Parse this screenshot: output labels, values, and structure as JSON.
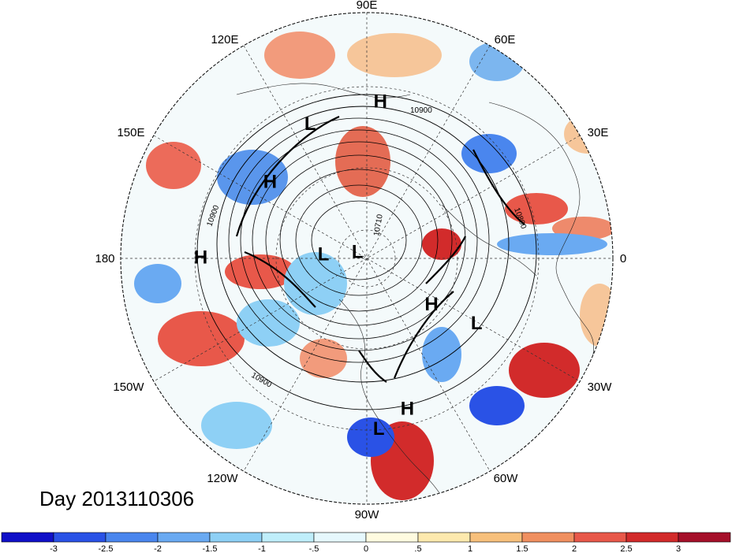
{
  "title": "Day 2013110306",
  "longitude_labels": [
    "90E",
    "60E",
    "30E",
    "0",
    "30W",
    "60W",
    "90W",
    "120W",
    "150W",
    "180",
    "150E",
    "120E"
  ],
  "pressure_systems": [
    {
      "type": "H",
      "lon": 85,
      "lat": 25
    },
    {
      "type": "L",
      "lon": 113,
      "lat": 29
    },
    {
      "type": "H",
      "lon": 142,
      "lat": 37
    },
    {
      "type": "L",
      "lon": 176,
      "lat": 70
    },
    {
      "type": "L",
      "lon": 150,
      "lat": 85
    },
    {
      "type": "H",
      "lon": 180,
      "lat": 22
    },
    {
      "type": "H",
      "lon": -75,
      "lat": 25
    },
    {
      "type": "L",
      "lon": -86,
      "lat": 20
    },
    {
      "type": "H",
      "lon": -36,
      "lat": 54
    },
    {
      "type": "L",
      "lon": -31,
      "lat": 35
    }
  ],
  "contour_labels": [
    "10900",
    "10900",
    "10900",
    "10800",
    "10710"
  ],
  "colorbar": {
    "ticks": [
      "-3",
      "-2.5",
      "-2",
      "-1.5",
      "-1",
      "-.5",
      "0",
      ".5",
      "1",
      "1.5",
      "2",
      "2.5",
      "3"
    ],
    "colors": [
      "#1010c8",
      "#2a52e6",
      "#4a86ee",
      "#6aaaf2",
      "#8ed0f5",
      "#bfeefa",
      "#e6f8fd",
      "#fffbe0",
      "#fde9ae",
      "#f7c07c",
      "#f09060",
      "#e8584a",
      "#d22b2b",
      "#a5102a"
    ]
  }
}
